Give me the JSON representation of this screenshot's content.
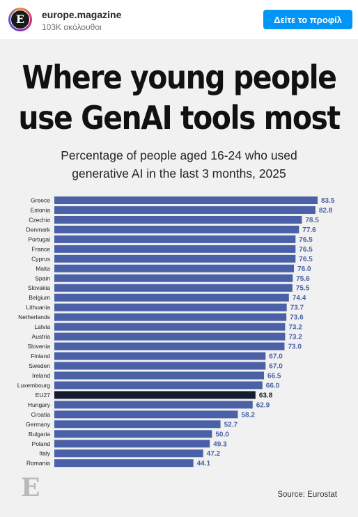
{
  "header": {
    "avatar_letter": "E",
    "account_name": "europe.magazine",
    "followers": "103K ακόλουθοι",
    "view_profile_label": "Δείτε το προφίλ"
  },
  "post": {
    "title_line1": "Where young people",
    "title_line2": "use GenAI tools most",
    "subtitle_line1": "Percentage of people aged 16-24 who used",
    "subtitle_line2": "generative AI in the last 3 months, 2025",
    "brand_letter": "E",
    "source": "Source: Eurostat"
  },
  "colors": {
    "bar": "#4a61a8",
    "highlight_bar": "#161b2e",
    "value_label": "#4a61a8",
    "highlight_label": "#161b2e"
  },
  "chart_data": {
    "type": "bar",
    "orientation": "horizontal",
    "title": "Where young people use GenAI tools most",
    "subtitle": "Percentage of people aged 16-24 who used generative AI in the last 3 months, 2025",
    "categories": [
      "Greece",
      "Estonia",
      "Czechia",
      "Denmark",
      "Portugal",
      "France",
      "Cyprus",
      "Malta",
      "Spain",
      "Slovakia",
      "Belgium",
      "Lithuania",
      "Netherlands",
      "Latvia",
      "Austria",
      "Slovenia",
      "Finland",
      "Sweden",
      "Ireland",
      "Luxembourg",
      "EU27",
      "Hungary",
      "Croatia",
      "Germany",
      "Bulgaria",
      "Poland",
      "Italy",
      "Romania"
    ],
    "values": [
      83.5,
      82.8,
      78.5,
      77.6,
      76.5,
      76.5,
      76.5,
      76.0,
      75.6,
      75.5,
      74.4,
      73.7,
      73.6,
      73.2,
      73.2,
      73.0,
      67.0,
      67.0,
      66.5,
      66.0,
      63.8,
      62.9,
      58.2,
      52.7,
      50.0,
      49.3,
      47.2,
      44.1
    ],
    "value_labels": [
      "83.5",
      "82.8",
      "78.5",
      "77.6",
      "76.5",
      "76.5",
      "76.5",
      "76.0",
      "75.6",
      "75.5",
      "74.4",
      "73.7",
      "73.6",
      "73.2",
      "73.2",
      "73.0",
      "67.0",
      "67.0",
      "66.5",
      "66.0",
      "63.8",
      "62.9",
      "58.2",
      "52.7",
      "50.0",
      "49.3",
      "47.2",
      "44.1"
    ],
    "highlight": "EU27",
    "xlim": [
      0,
      100
    ],
    "grid": false,
    "legend": "none",
    "source": "Source: Eurostat"
  }
}
